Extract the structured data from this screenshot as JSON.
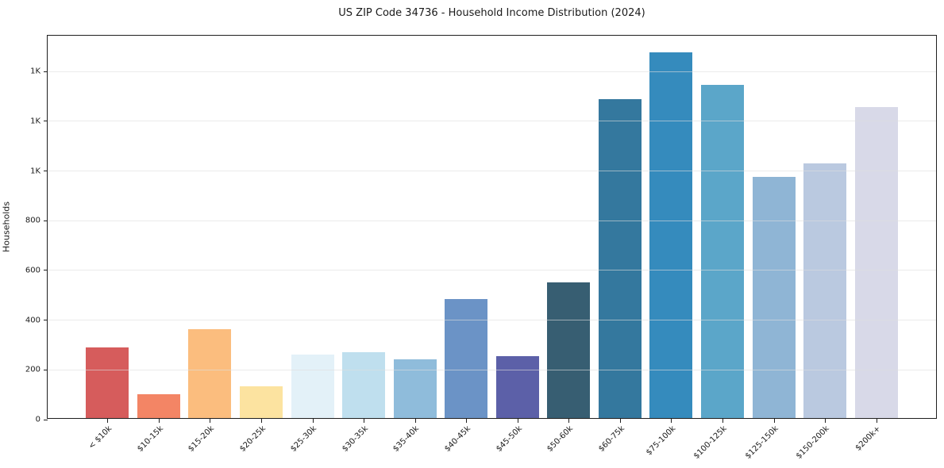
{
  "header": {
    "title": "US ZIP Code 34736 - Household Income Distribution (2024)"
  },
  "chart_data": {
    "type": "bar",
    "title": "US ZIP Code 34736 - Household Income Distribution (2024)",
    "xlabel": "",
    "ylabel": "Households",
    "categories": [
      "< $10k",
      "$10-15k",
      "$15-20k",
      "$20-25k",
      "$25-30k",
      "$30-35k",
      "$35-40k",
      "$40-45k",
      "$45-50k",
      "$50-60k",
      "$60-75k",
      "$75-100k",
      "$100-125k",
      "$125-150k",
      "$150-200k",
      "$200k+"
    ],
    "values": [
      285,
      97,
      357,
      127,
      255,
      265,
      235,
      478,
      248,
      545,
      1283,
      1470,
      1340,
      970,
      1025,
      1250
    ],
    "bar_colors": [
      "#d65c5c",
      "#f38565",
      "#fbbd7e",
      "#fce3a0",
      "#e3f1f8",
      "#bfdfee",
      "#8fbcdb",
      "#6b93c6",
      "#5c60a8",
      "#375e72",
      "#34789e",
      "#358bbd",
      "#5ba6c9",
      "#8fb5d5",
      "#bac9e0",
      "#d8d9e8"
    ],
    "ylim": [
      0,
      1544
    ],
    "yticks": [
      {
        "value": 0,
        "label": "0"
      },
      {
        "value": 200,
        "label": "200"
      },
      {
        "value": 400,
        "label": "400"
      },
      {
        "value": 600,
        "label": "600"
      },
      {
        "value": 800,
        "label": "800"
      },
      {
        "value": 1000,
        "label": "1K"
      },
      {
        "value": 1200,
        "label": "1K"
      },
      {
        "value": 1400,
        "label": "1K"
      }
    ],
    "grid": "horizontal",
    "grid_color": "rgba(222,222,222,0.6)",
    "spine_color": "#1f1f1f",
    "background": "#ffffff",
    "legend": "none"
  }
}
